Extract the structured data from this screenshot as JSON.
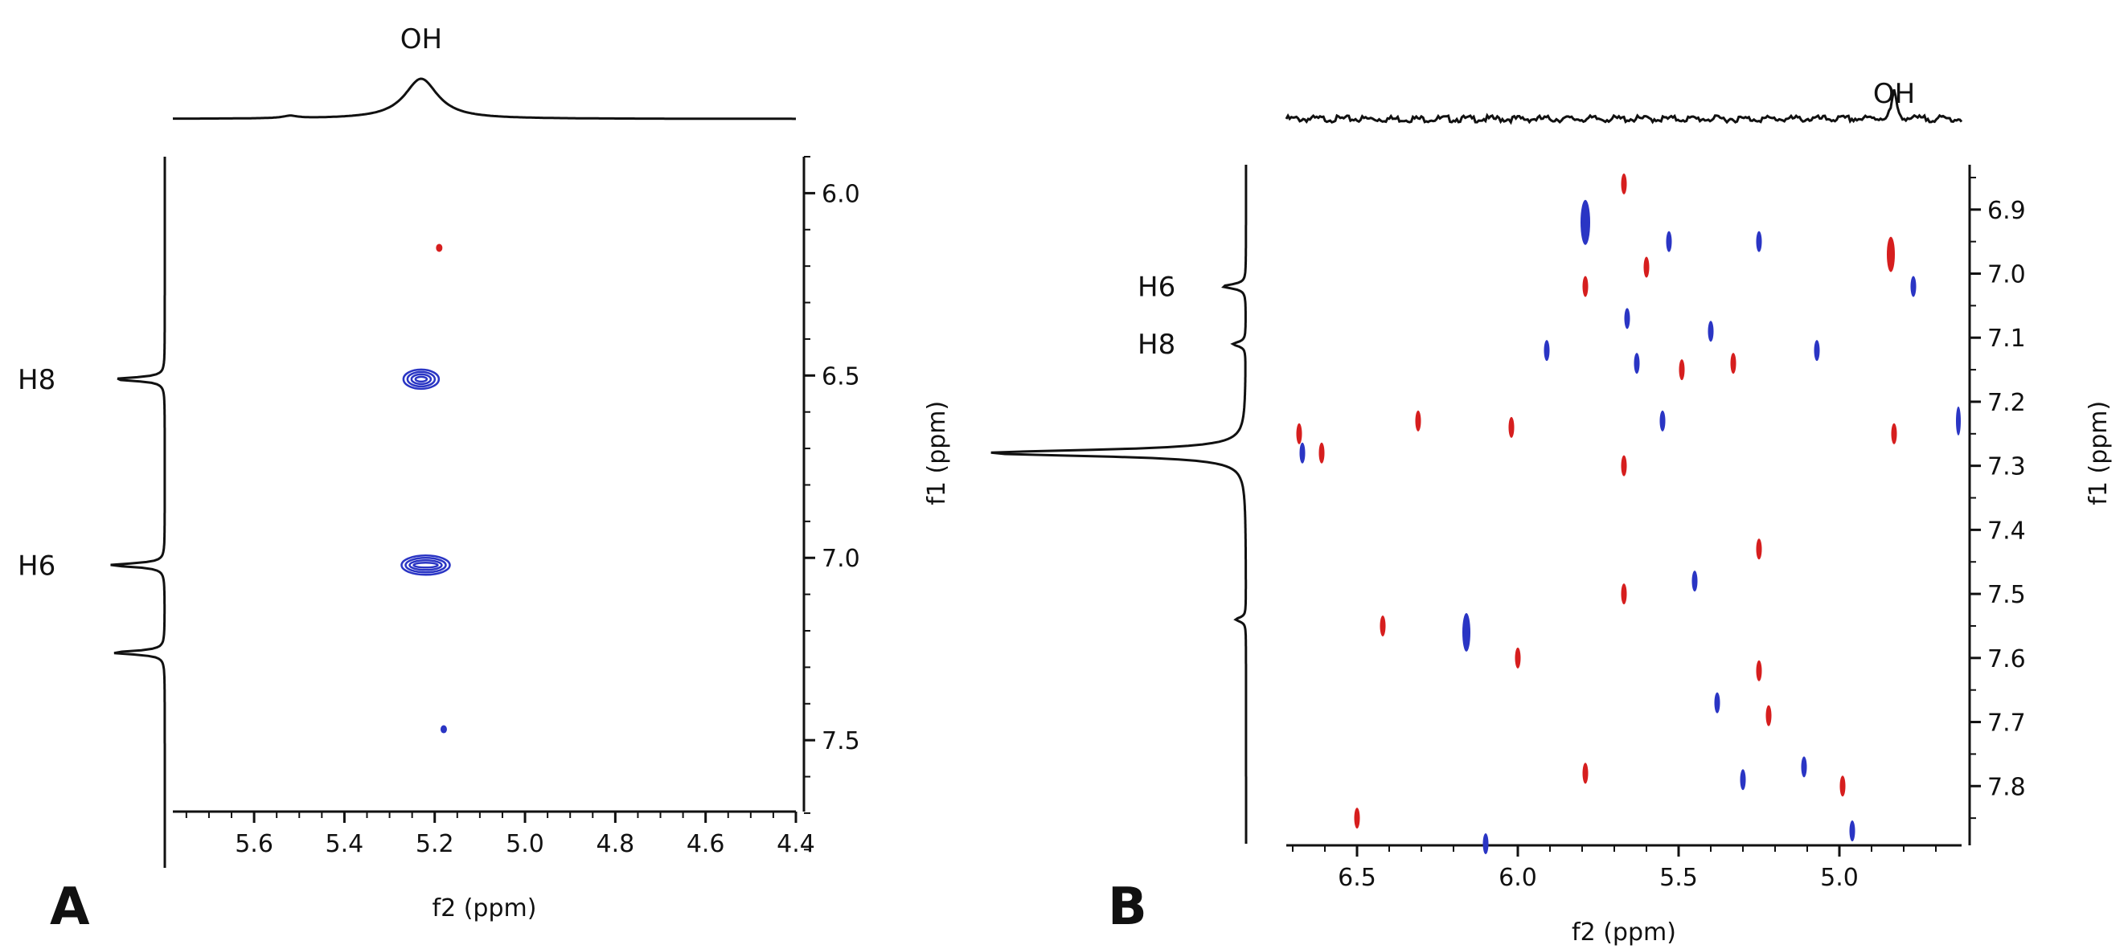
{
  "chart_data": [
    {
      "type": "scatter",
      "panel_letter": "A",
      "xlabel": "f2 (ppm)",
      "ylabel": "",
      "x_axis_reversed": true,
      "y_axis_reversed": true,
      "xlim": [
        5.78,
        4.4
      ],
      "ylim": [
        5.9,
        7.85
      ],
      "x_ticks": [
        "5.6",
        "5.4",
        "5.2",
        "5.0",
        "4.8",
        "4.6",
        "4.4"
      ],
      "y_ticks": [
        "6.0",
        "6.5",
        "7.0",
        "7.5"
      ],
      "top_trace_label": "OH",
      "left_trace_labels": [
        "H8",
        "H6"
      ],
      "left_trace_peaks_ppm": [
        6.51,
        7.02,
        7.26
      ],
      "top_trace_peak_ppm": 5.23,
      "colors": {
        "positive": "#2a35c4",
        "negative": "#d61e1e",
        "trace": "#111111"
      },
      "cross_peaks": [
        {
          "x": 5.19,
          "y": 6.15,
          "sign": "negative",
          "intensity": "weak"
        },
        {
          "x": 5.23,
          "y": 6.51,
          "sign": "positive",
          "intensity": "strong"
        },
        {
          "x": 5.22,
          "y": 7.02,
          "sign": "positive",
          "intensity": "strong"
        },
        {
          "x": 5.18,
          "y": 7.47,
          "sign": "positive",
          "intensity": "weak"
        }
      ]
    },
    {
      "type": "scatter",
      "panel_letter": "B",
      "xlabel": "f2 (ppm)",
      "ylabel": "f1 (ppm)",
      "x_axis_reversed": true,
      "y_axis_reversed": true,
      "xlim": [
        6.72,
        4.62
      ],
      "ylim": [
        6.83,
        7.89
      ],
      "x_ticks": [
        "6.5",
        "6.0",
        "5.5",
        "5.0"
      ],
      "y_ticks": [
        "6.9",
        "7.0",
        "7.1",
        "7.2",
        "7.3",
        "7.4",
        "7.5",
        "7.6",
        "7.7",
        "7.8"
      ],
      "top_trace_label": "OH",
      "left_trace_labels": [
        "H6",
        "H8"
      ],
      "left_trace_peaks_ppm": [
        7.02,
        7.11,
        7.28,
        7.54
      ],
      "top_trace_peak_ppm": 4.83,
      "colors": {
        "positive": "#2a35c4",
        "negative": "#d61e1e",
        "trace": "#111111"
      },
      "cross_peaks": [
        {
          "x": 5.67,
          "y": 6.86,
          "sign": "negative"
        },
        {
          "x": 5.79,
          "y": 6.92,
          "sign": "positive"
        },
        {
          "x": 5.53,
          "y": 6.95,
          "sign": "positive"
        },
        {
          "x": 5.25,
          "y": 6.95,
          "sign": "positive"
        },
        {
          "x": 4.84,
          "y": 6.97,
          "sign": "negative"
        },
        {
          "x": 5.6,
          "y": 6.99,
          "sign": "negative"
        },
        {
          "x": 5.79,
          "y": 7.02,
          "sign": "negative"
        },
        {
          "x": 4.77,
          "y": 7.02,
          "sign": "positive"
        },
        {
          "x": 5.66,
          "y": 7.07,
          "sign": "positive"
        },
        {
          "x": 5.4,
          "y": 7.09,
          "sign": "positive"
        },
        {
          "x": 5.91,
          "y": 7.12,
          "sign": "positive"
        },
        {
          "x": 5.07,
          "y": 7.12,
          "sign": "positive"
        },
        {
          "x": 5.63,
          "y": 7.14,
          "sign": "positive"
        },
        {
          "x": 5.49,
          "y": 7.15,
          "sign": "negative"
        },
        {
          "x": 5.33,
          "y": 7.14,
          "sign": "negative"
        },
        {
          "x": 6.31,
          "y": 7.23,
          "sign": "negative"
        },
        {
          "x": 6.02,
          "y": 7.24,
          "sign": "negative"
        },
        {
          "x": 5.55,
          "y": 7.23,
          "sign": "positive"
        },
        {
          "x": 4.63,
          "y": 7.23,
          "sign": "positive"
        },
        {
          "x": 6.68,
          "y": 7.25,
          "sign": "negative"
        },
        {
          "x": 4.83,
          "y": 7.25,
          "sign": "negative"
        },
        {
          "x": 6.67,
          "y": 7.28,
          "sign": "positive"
        },
        {
          "x": 6.61,
          "y": 7.28,
          "sign": "negative"
        },
        {
          "x": 5.67,
          "y": 7.3,
          "sign": "negative"
        },
        {
          "x": 5.25,
          "y": 7.43,
          "sign": "negative"
        },
        {
          "x": 5.45,
          "y": 7.48,
          "sign": "positive"
        },
        {
          "x": 5.67,
          "y": 7.5,
          "sign": "negative"
        },
        {
          "x": 6.42,
          "y": 7.55,
          "sign": "negative"
        },
        {
          "x": 6.16,
          "y": 7.56,
          "sign": "positive"
        },
        {
          "x": 6.0,
          "y": 7.6,
          "sign": "negative"
        },
        {
          "x": 5.25,
          "y": 7.62,
          "sign": "negative"
        },
        {
          "x": 5.38,
          "y": 7.67,
          "sign": "positive"
        },
        {
          "x": 5.22,
          "y": 7.69,
          "sign": "negative"
        },
        {
          "x": 5.79,
          "y": 7.78,
          "sign": "negative"
        },
        {
          "x": 5.11,
          "y": 7.77,
          "sign": "positive"
        },
        {
          "x": 5.3,
          "y": 7.79,
          "sign": "positive"
        },
        {
          "x": 4.99,
          "y": 7.8,
          "sign": "negative"
        },
        {
          "x": 6.5,
          "y": 7.85,
          "sign": "negative"
        },
        {
          "x": 4.96,
          "y": 7.87,
          "sign": "positive"
        },
        {
          "x": 6.1,
          "y": 7.89,
          "sign": "positive"
        }
      ]
    }
  ]
}
